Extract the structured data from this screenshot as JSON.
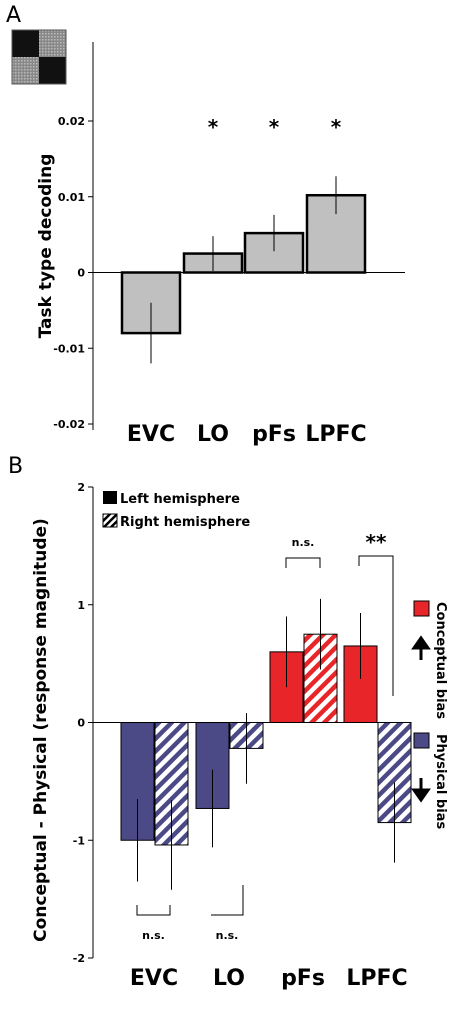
{
  "chart_data": [
    {
      "type": "bar",
      "panel": "A",
      "ylabel": "Task type decoding",
      "categories": [
        "EVC",
        "LO",
        "pFs",
        "LPFC"
      ],
      "values": [
        -0.008,
        0.0025,
        0.0052,
        0.0102
      ],
      "errors": [
        0.004,
        0.0023,
        0.0024,
        0.0025
      ],
      "significance": [
        "",
        "*",
        "*",
        "*"
      ],
      "ylim": [
        -0.02,
        0.02
      ],
      "yticks": [
        "-0.02",
        "-0.01",
        "0",
        "0.01",
        "0.02"
      ],
      "bar_color": "#c0c0c0",
      "grid": false
    },
    {
      "type": "bar",
      "panel": "B",
      "ylabel": "Conceptual - Physical (response magnitude)",
      "categories": [
        "EVC",
        "LO",
        "pFs",
        "LPFC"
      ],
      "series": [
        {
          "name": "Left hemisphere",
          "values": [
            -1.0,
            -0.73,
            0.6,
            0.65
          ],
          "errors": [
            0.35,
            0.33,
            0.3,
            0.28
          ]
        },
        {
          "name": "Right hemisphere",
          "values": [
            -1.04,
            -0.22,
            0.75,
            -0.85
          ],
          "errors": [
            0.38,
            0.3,
            0.3,
            0.34
          ]
        }
      ],
      "significance": [
        "n.s.",
        "n.s.",
        "n.s.",
        "**"
      ],
      "ylim": [
        -2,
        2
      ],
      "yticks": [
        "-2",
        "-1",
        "0",
        "1",
        "2"
      ],
      "colors": {
        "conceptual": "#e8262a",
        "physical": "#4c4a86"
      },
      "side_labels": [
        "Conceptual bias",
        "Physical bias"
      ],
      "legend_position": "top-left",
      "grid": false
    }
  ]
}
